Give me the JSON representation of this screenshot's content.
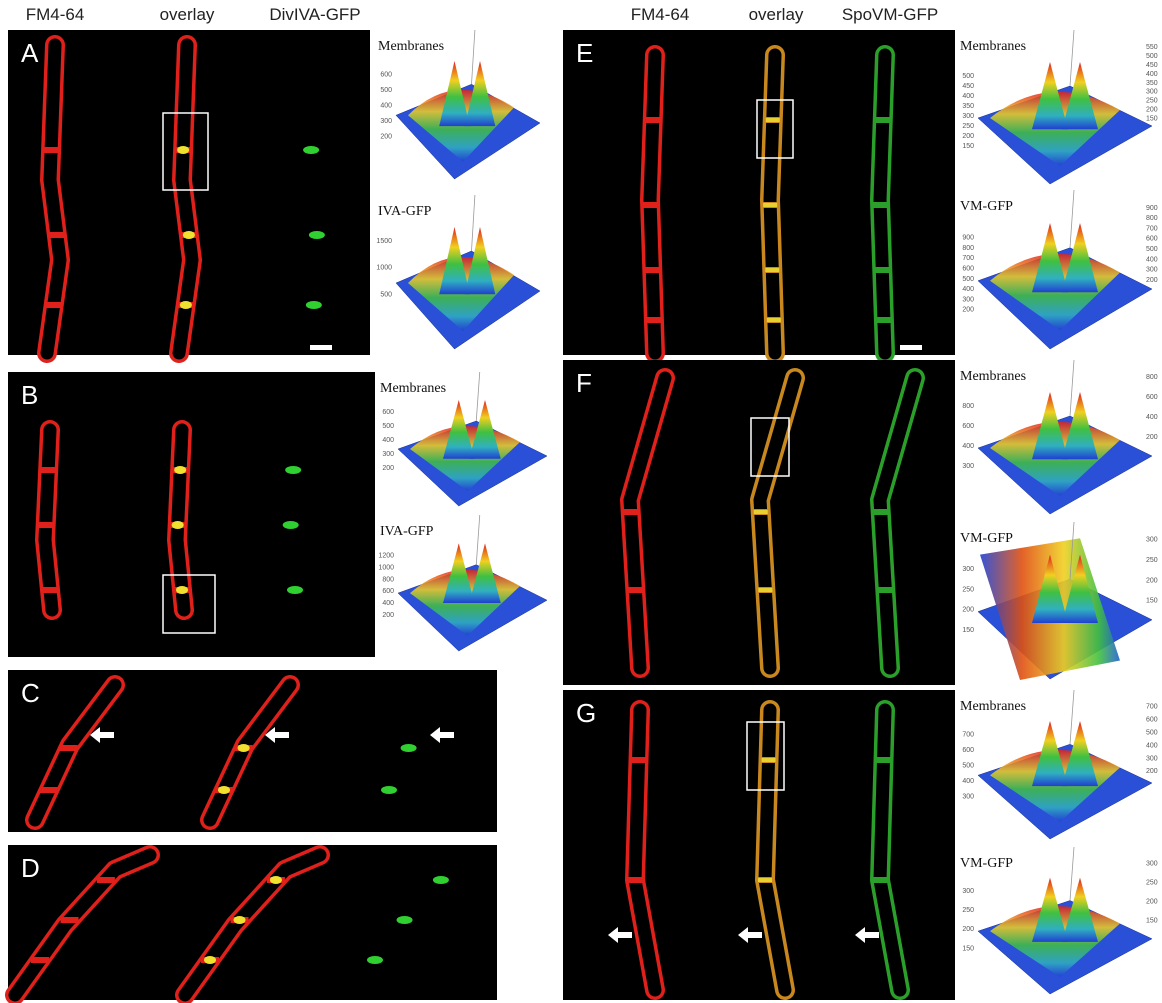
{
  "columns_left": [
    "FM4-64",
    "overlay",
    "DivIVA-GFP"
  ],
  "columns_right": [
    "FM4-64",
    "overlay",
    "SpoVM-GFP"
  ],
  "panels": [
    {
      "label": "A",
      "plots": [
        {
          "title": "Membranes",
          "ticks": [
            600,
            500,
            400,
            300,
            200
          ]
        },
        {
          "title": "IVA-GFP",
          "ticks": [
            1500,
            1000,
            500
          ]
        }
      ]
    },
    {
      "label": "B",
      "plots": [
        {
          "title": "Membranes",
          "ticks": [
            600,
            500,
            400,
            300,
            200
          ]
        },
        {
          "title": "IVA-GFP",
          "ticks": [
            1200,
            1000,
            800,
            600,
            400,
            200
          ]
        }
      ]
    },
    {
      "label": "C",
      "plots": []
    },
    {
      "label": "D",
      "plots": []
    },
    {
      "label": "E",
      "plots": [
        {
          "title": "Membranes",
          "ticks": [
            500,
            450,
            400,
            350,
            300,
            250,
            200,
            150
          ],
          "ticks_right": [
            550,
            500,
            450,
            400,
            350,
            300,
            250,
            200,
            150
          ]
        },
        {
          "title": "VM-GFP",
          "ticks": [
            900,
            800,
            700,
            600,
            500,
            400,
            300,
            200
          ],
          "ticks_right": [
            900,
            800,
            700,
            600,
            500,
            400,
            300,
            200
          ]
        }
      ]
    },
    {
      "label": "F",
      "plots": [
        {
          "title": "Membranes",
          "ticks": [
            800,
            600,
            400,
            300
          ],
          "ticks_right": [
            800,
            600,
            400,
            200
          ]
        },
        {
          "title": "VM-GFP",
          "ticks": [
            300,
            250,
            200,
            150
          ],
          "ticks_right": [
            300,
            250,
            200,
            150
          ]
        }
      ]
    },
    {
      "label": "G",
      "plots": [
        {
          "title": "Membranes",
          "ticks": [
            700,
            600,
            500,
            400,
            300
          ],
          "ticks_right": [
            700,
            600,
            500,
            400,
            300,
            200
          ]
        },
        {
          "title": "VM-GFP",
          "ticks": [
            300,
            250,
            200,
            150
          ],
          "ticks_right": [
            300,
            250,
            200,
            150
          ]
        }
      ]
    }
  ]
}
